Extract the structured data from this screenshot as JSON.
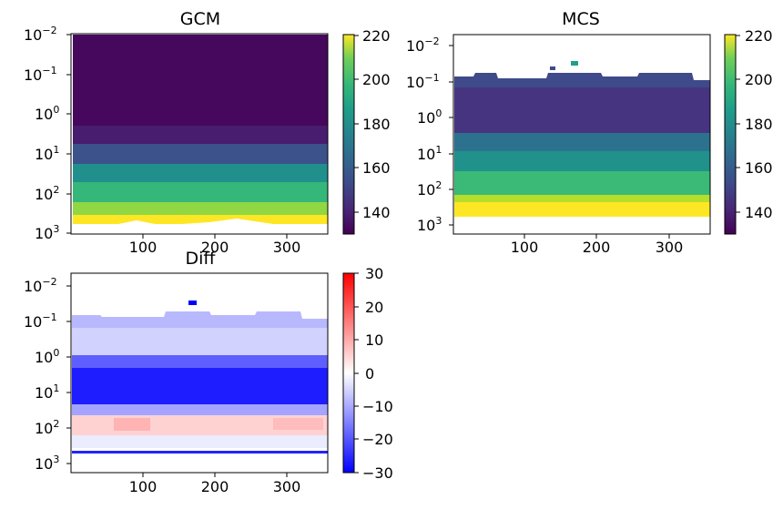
{
  "chart_data": [
    {
      "type": "heatmap",
      "title": "GCM",
      "xlabel": "",
      "ylabel": "",
      "xlim": [
        0,
        360
      ],
      "x_ticks": [
        "100",
        "200",
        "300"
      ],
      "ylim": [
        1000,
        0.01
      ],
      "y_scale": "log",
      "y_ticks": [
        "10",
        "10",
        "10",
        "10",
        "10",
        "10"
      ],
      "y_tick_exps": [
        "−2",
        "−1",
        "0",
        "1",
        "2",
        "3"
      ],
      "colorbar": {
        "colormap": "viridis",
        "range": [
          130,
          220
        ],
        "ticks": [
          "140",
          "160",
          "180",
          "200",
          "220"
        ]
      }
    },
    {
      "type": "heatmap",
      "title": "MCS",
      "xlabel": "",
      "ylabel": "",
      "xlim": [
        0,
        360
      ],
      "x_ticks": [
        "100",
        "200",
        "300"
      ],
      "ylim": [
        1000,
        0.01
      ],
      "y_scale": "log",
      "y_ticks": [
        "10",
        "10",
        "10",
        "10",
        "10",
        "10"
      ],
      "y_tick_exps": [
        "−2",
        "−1",
        "0",
        "1",
        "2",
        "3"
      ],
      "colorbar": {
        "colormap": "viridis",
        "range": [
          130,
          220
        ],
        "ticks": [
          "140",
          "160",
          "180",
          "200",
          "220"
        ]
      }
    },
    {
      "type": "heatmap",
      "title": "Diff",
      "xlabel": "",
      "ylabel": "",
      "xlim": [
        0,
        360
      ],
      "x_ticks": [
        "100",
        "200",
        "300"
      ],
      "ylim": [
        1000,
        0.01
      ],
      "y_scale": "log",
      "y_ticks": [
        "10",
        "10",
        "10",
        "10",
        "10",
        "10"
      ],
      "y_tick_exps": [
        "−2",
        "−1",
        "0",
        "1",
        "2",
        "3"
      ],
      "colorbar": {
        "colormap": "bwr",
        "range": [
          -30,
          30
        ],
        "ticks": [
          "−30",
          "−20",
          "−10",
          "0",
          "10",
          "20",
          "30"
        ]
      }
    }
  ]
}
